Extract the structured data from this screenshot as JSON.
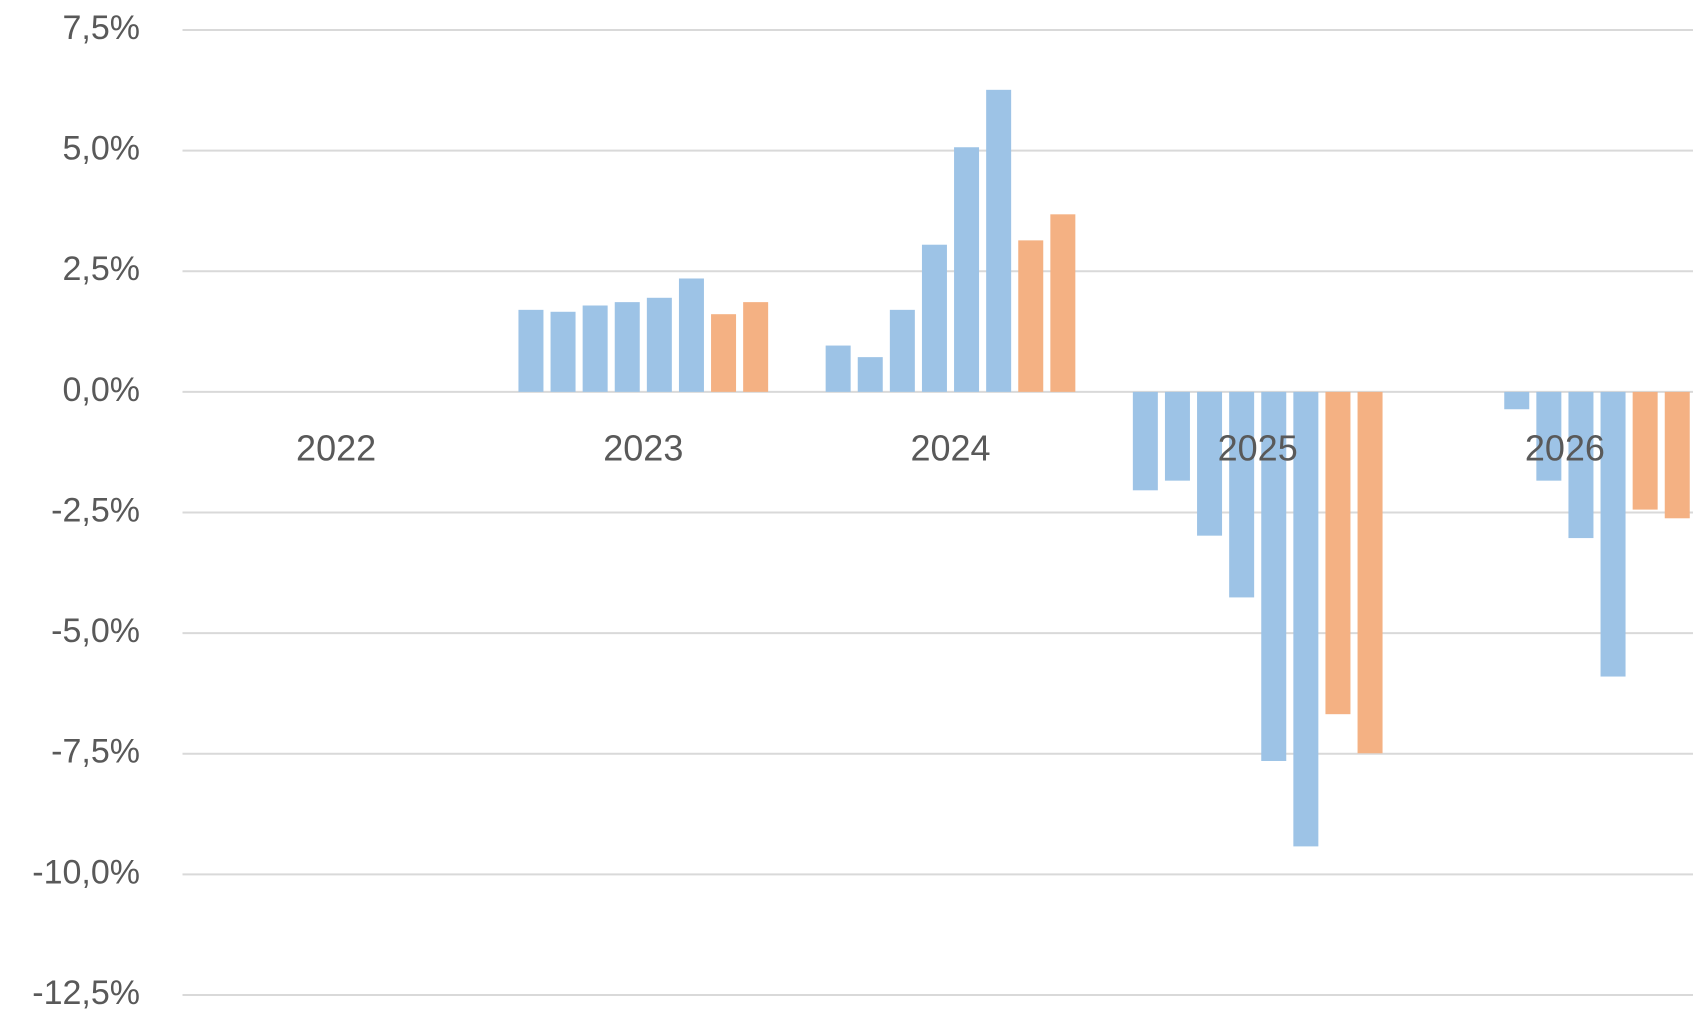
{
  "chart_data": {
    "type": "bar",
    "categories": [
      "2022",
      "2023",
      "2024",
      "2025",
      "2026"
    ],
    "series": [
      {
        "color": "#9dc3e6",
        "values": [
          null,
          1.7,
          0.96,
          -2.04,
          null
        ]
      },
      {
        "color": "#9dc3e6",
        "values": [
          null,
          1.66,
          0.72,
          -1.84,
          null
        ]
      },
      {
        "color": "#9dc3e6",
        "values": [
          null,
          1.79,
          1.7,
          -2.98,
          -0.36
        ]
      },
      {
        "color": "#9dc3e6",
        "values": [
          null,
          1.86,
          3.05,
          -4.26,
          -1.84
        ]
      },
      {
        "color": "#9dc3e6",
        "values": [
          null,
          1.95,
          5.07,
          -7.65,
          -3.03
        ]
      },
      {
        "color": "#9dc3e6",
        "values": [
          null,
          2.35,
          6.26,
          -9.42,
          -5.9
        ]
      },
      {
        "color": "#f4b183",
        "values": [
          null,
          1.61,
          3.14,
          -6.68,
          -2.44
        ]
      },
      {
        "color": "#f4b183",
        "values": [
          null,
          1.86,
          3.68,
          -7.49,
          -2.62
        ]
      }
    ],
    "ylim": [
      -12.5,
      7.5
    ],
    "yticks": [
      {
        "value": 7.5,
        "label": "7,5%"
      },
      {
        "value": 5,
        "label": "5,0%"
      },
      {
        "value": 2.5,
        "label": "2,5%"
      },
      {
        "value": 0,
        "label": "0,0%"
      },
      {
        "value": -2.5,
        "label": "-2,5%"
      },
      {
        "value": -5,
        "label": "-5,0%"
      },
      {
        "value": -7.5,
        "label": "-7,5%"
      },
      {
        "value": -10,
        "label": "-10,0%"
      },
      {
        "value": -12.5,
        "label": "-12,5%"
      }
    ],
    "grid": true
  }
}
